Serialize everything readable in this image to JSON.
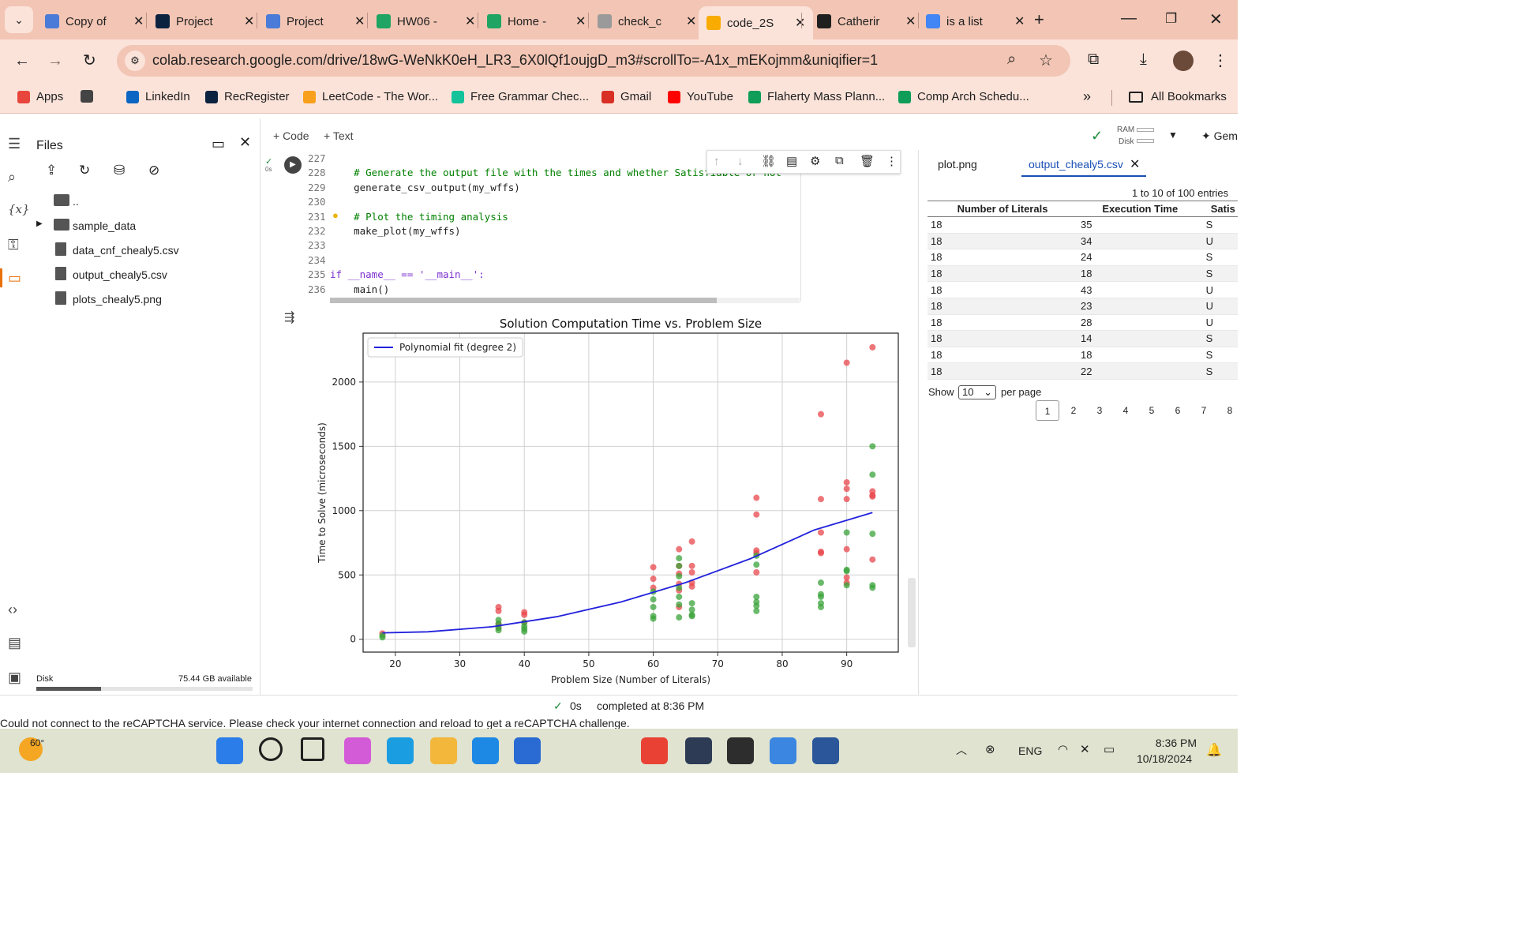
{
  "browser": {
    "tabs": [
      {
        "label": "Copy of",
        "icon": "docs-icon",
        "color": "#4a7bd8"
      },
      {
        "label": "Project",
        "icon": "notre-dame-icon",
        "color": "#0c2340"
      },
      {
        "label": "Project",
        "icon": "docs-icon",
        "color": "#4a7bd8"
      },
      {
        "label": "HW06 -",
        "icon": "drive-icon",
        "color": "#1fa463"
      },
      {
        "label": "Home -",
        "icon": "drive-icon",
        "color": "#1fa463"
      },
      {
        "label": "check_c",
        "icon": "colab-icon",
        "color": "#9a9a9a"
      },
      {
        "label": "code_2S",
        "icon": "colab-icon",
        "color": "#f9ab00"
      },
      {
        "label": "Catherir",
        "icon": "github-icon",
        "color": "#1f1f1f"
      },
      {
        "label": "is a list",
        "icon": "google-icon",
        "color": "#4285f4"
      }
    ],
    "new_tab": "+",
    "url": "colab.research.google.com/drive/18wG-WeNkK0eH_LR3_6X0lQf1oujgD_m3#scrollTo=-A1x_mEKojmm&uniqifier=1",
    "bookmarks": [
      {
        "label": "Apps",
        "color": "#e8453c"
      },
      {
        "label": "",
        "color": "#444"
      },
      {
        "label": "LinkedIn",
        "color": "#0a66c2"
      },
      {
        "label": "RecRegister",
        "color": "#0c2340"
      },
      {
        "label": "LeetCode - The Wor...",
        "color": "#f89f1b"
      },
      {
        "label": "Free Grammar Chec...",
        "color": "#15c39a"
      },
      {
        "label": "Gmail",
        "color": "#d93025"
      },
      {
        "label": "YouTube",
        "color": "#ff0000"
      },
      {
        "label": "Flaherty Mass Plann...",
        "color": "#0f9d58"
      },
      {
        "label": "Comp Arch  Schedu...",
        "color": "#0f9d58"
      }
    ],
    "more": "»",
    "all_bookmarks": "All Bookmarks"
  },
  "files": {
    "title": "Files",
    "items": [
      {
        "name": "..",
        "kind": "folder"
      },
      {
        "name": "sample_data",
        "kind": "folder"
      },
      {
        "name": "data_cnf_chealy5.csv",
        "kind": "file"
      },
      {
        "name": "output_chealy5.csv",
        "kind": "file"
      },
      {
        "name": "plots_chealy5.png",
        "kind": "file"
      }
    ],
    "disk_label": "Disk",
    "disk_available": "75.44 GB available",
    "disk_used_fraction": 0.3
  },
  "toolbar": {
    "code": "+ Code",
    "text": "+ Text",
    "ram": "RAM",
    "disk": "Disk",
    "gemini": "✦ Gem"
  },
  "cell": {
    "run_status": "0s",
    "lines": [
      {
        "n": "227",
        "code": ""
      },
      {
        "n": "228",
        "code": "    # Generate the output file with the times and whether Satisfiable or not"
      },
      {
        "n": "229",
        "code": "    generate_csv_output(my_wffs)"
      },
      {
        "n": "230",
        "code": ""
      },
      {
        "n": "231",
        "code": "    # Plot the timing analysis"
      },
      {
        "n": "232",
        "code": "    make_plot(my_wffs)"
      },
      {
        "n": "233",
        "code": ""
      },
      {
        "n": "234",
        "code": ""
      },
      {
        "n": "235",
        "code": "if __name__ == '__main__':"
      },
      {
        "n": "236",
        "code": "    main()"
      }
    ]
  },
  "chart_data": {
    "type": "scatter",
    "title": "Solution Computation Time vs. Problem Size",
    "xlabel": "Problem Size (Number of Literals)",
    "ylabel": "Time to Solve (microseconds)",
    "xlim": [
      15,
      98
    ],
    "ylim": [
      -100,
      2380
    ],
    "xticks": [
      20,
      30,
      40,
      50,
      60,
      70,
      80,
      90
    ],
    "yticks": [
      0,
      500,
      1000,
      1500,
      2000
    ],
    "grid": true,
    "legend": "top-left",
    "legend_entries": [
      "Polynomial fit (degree 2)"
    ],
    "colors": {
      "unsat": "#e8474c",
      "sat": "#3aa33a",
      "fit": "#2222dd"
    },
    "unsat_points": [
      [
        18,
        45
      ],
      [
        36,
        250
      ],
      [
        36,
        220
      ],
      [
        36,
        120
      ],
      [
        36,
        90
      ],
      [
        40,
        210
      ],
      [
        40,
        190
      ],
      [
        40,
        130
      ],
      [
        60,
        560
      ],
      [
        60,
        470
      ],
      [
        60,
        400
      ],
      [
        64,
        700
      ],
      [
        64,
        570
      ],
      [
        64,
        510
      ],
      [
        64,
        430
      ],
      [
        64,
        380
      ],
      [
        64,
        250
      ],
      [
        66,
        760
      ],
      [
        66,
        570
      ],
      [
        66,
        520
      ],
      [
        66,
        440
      ],
      [
        66,
        410
      ],
      [
        76,
        1100
      ],
      [
        76,
        970
      ],
      [
        76,
        690
      ],
      [
        76,
        670
      ],
      [
        76,
        520
      ],
      [
        86,
        1750
      ],
      [
        86,
        1090
      ],
      [
        86,
        830
      ],
      [
        86,
        680
      ],
      [
        86,
        670
      ],
      [
        90,
        2150
      ],
      [
        90,
        1220
      ],
      [
        90,
        1170
      ],
      [
        90,
        1090
      ],
      [
        90,
        700
      ],
      [
        90,
        480
      ],
      [
        90,
        440
      ],
      [
        94,
        2270
      ],
      [
        94,
        1150
      ],
      [
        94,
        1120
      ],
      [
        94,
        1110
      ],
      [
        94,
        620
      ]
    ],
    "sat_points": [
      [
        18,
        30
      ],
      [
        18,
        15
      ],
      [
        36,
        150
      ],
      [
        36,
        120
      ],
      [
        36,
        90
      ],
      [
        36,
        70
      ],
      [
        40,
        130
      ],
      [
        40,
        100
      ],
      [
        40,
        80
      ],
      [
        40,
        60
      ],
      [
        60,
        370
      ],
      [
        60,
        310
      ],
      [
        60,
        250
      ],
      [
        60,
        180
      ],
      [
        60,
        160
      ],
      [
        64,
        630
      ],
      [
        64,
        570
      ],
      [
        64,
        490
      ],
      [
        64,
        400
      ],
      [
        64,
        330
      ],
      [
        64,
        270
      ],
      [
        64,
        170
      ],
      [
        66,
        280
      ],
      [
        66,
        230
      ],
      [
        66,
        190
      ],
      [
        66,
        180
      ],
      [
        76,
        650
      ],
      [
        76,
        580
      ],
      [
        76,
        330
      ],
      [
        76,
        290
      ],
      [
        76,
        260
      ],
      [
        76,
        220
      ],
      [
        86,
        440
      ],
      [
        86,
        350
      ],
      [
        86,
        330
      ],
      [
        86,
        280
      ],
      [
        86,
        250
      ],
      [
        90,
        830
      ],
      [
        90,
        540
      ],
      [
        90,
        530
      ],
      [
        90,
        420
      ],
      [
        94,
        1500
      ],
      [
        94,
        1280
      ],
      [
        94,
        820
      ],
      [
        94,
        420
      ],
      [
        94,
        400
      ]
    ],
    "fit_curve": [
      [
        18,
        50
      ],
      [
        25,
        58
      ],
      [
        35,
        97
      ],
      [
        45,
        175
      ],
      [
        55,
        290
      ],
      [
        65,
        440
      ],
      [
        75,
        625
      ],
      [
        85,
        850
      ],
      [
        94,
        985
      ]
    ]
  },
  "output_tabs": {
    "tab1": "plot.png",
    "tab2": "output_chealy5.csv"
  },
  "csv": {
    "entries": "1 to 10 of 100 entries",
    "headers": [
      "Number of Literals",
      "Execution Time",
      "Satis"
    ],
    "rows": [
      [
        "18",
        "35",
        "S"
      ],
      [
        "18",
        "34",
        "U"
      ],
      [
        "18",
        "24",
        "S"
      ],
      [
        "18",
        "18",
        "S"
      ],
      [
        "18",
        "43",
        "U"
      ],
      [
        "18",
        "23",
        "U"
      ],
      [
        "18",
        "28",
        "U"
      ],
      [
        "18",
        "14",
        "S"
      ],
      [
        "18",
        "18",
        "S"
      ],
      [
        "18",
        "22",
        "S"
      ]
    ],
    "show": "Show",
    "per_page_value": "10",
    "per_page": "per page",
    "pages": [
      "1",
      "2",
      "3",
      "4",
      "5",
      "6",
      "7",
      "8"
    ]
  },
  "status": {
    "time": "0s",
    "completed": "completed at 8:36 PM"
  },
  "recaptcha": "Could not connect to the reCAPTCHA service. Please check your internet connection and reload to get a reCAPTCHA challenge.",
  "taskbar": {
    "weather": "60°",
    "apps": [
      {
        "name": "windows-start-icon",
        "color": "#2b7de9"
      },
      {
        "name": "search-icon",
        "color": "#1f1f1f"
      },
      {
        "name": "task-view-icon",
        "color": "#1f1f1f"
      },
      {
        "name": "copilot-icon",
        "color": "#d45bd8"
      },
      {
        "name": "edge-icon",
        "color": "#1b9de2"
      },
      {
        "name": "file-explorer-icon",
        "color": "#f3b73b"
      },
      {
        "name": "vscode-icon",
        "color": "#1e88e5"
      },
      {
        "name": "powershell-icon",
        "color": "#2a6bd3"
      },
      {
        "name": "chrome-icon",
        "color": "#e94235"
      },
      {
        "name": "clock-app-icon",
        "color": "#2d3b55"
      },
      {
        "name": "terminal-icon",
        "color": "#2d2d2d"
      },
      {
        "name": "notepad-icon",
        "color": "#3a86e0"
      },
      {
        "name": "word-icon",
        "color": "#2b579a"
      }
    ],
    "lang": "ENG",
    "time": "8:36 PM",
    "date": "10/18/2024"
  }
}
